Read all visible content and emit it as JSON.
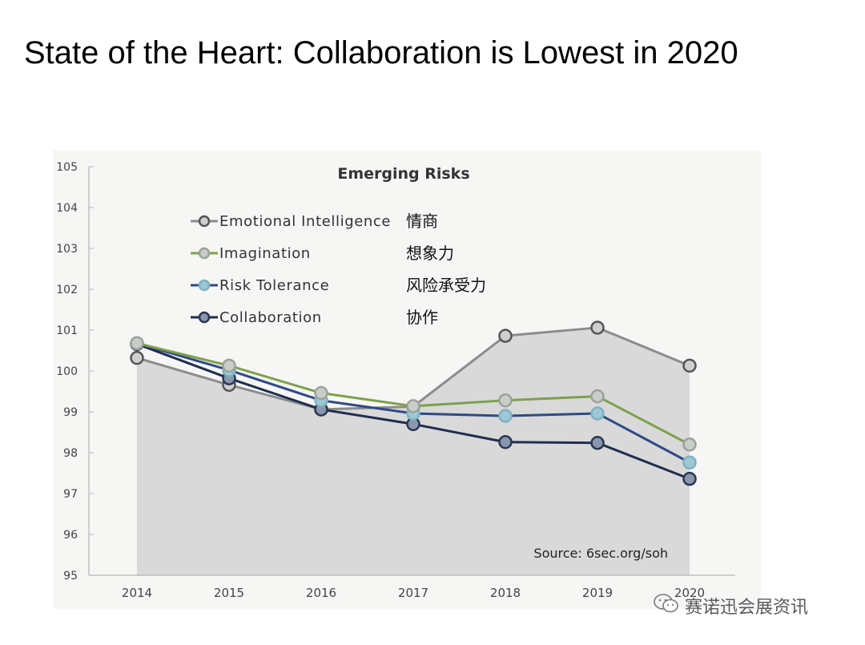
{
  "slide": {
    "title": "State of the Heart: Collaboration is Lowest in 2020"
  },
  "watermark": {
    "text": "赛诺迅会展资讯",
    "icon": "wechat-icon"
  },
  "colors": {
    "area": "#d9d9d9",
    "axis": "#b5b5b5",
    "text": "#333333"
  },
  "chart_data": {
    "type": "line",
    "title": "Emerging Risks",
    "source": "Source: 6sec.org/soh",
    "xlabel": "",
    "ylabel": "",
    "categories": [
      "2014",
      "2015",
      "2016",
      "2017",
      "2018",
      "2019",
      "2020"
    ],
    "ylim": [
      95,
      105
    ],
    "yticks": [
      "95",
      "96",
      "97",
      "98",
      "99",
      "100",
      "101",
      "102",
      "103",
      "104",
      "105"
    ],
    "grid": false,
    "legend_position": "top-left",
    "area_fill_series": "Emotional Intelligence",
    "series": [
      {
        "name": "Emotional Intelligence",
        "label_cn": "情商",
        "color": "#8c8c8c",
        "marker_fill": "#cfcfcf",
        "marker_stroke": "#555555",
        "values": [
          100.32,
          99.66,
          99.06,
          99.13,
          100.86,
          101.06,
          100.13
        ]
      },
      {
        "name": "Imagination",
        "label_cn": "想象力",
        "color": "#7ea04d",
        "marker_fill": "#c9ccc9",
        "marker_stroke": "#9aa39a",
        "values": [
          100.68,
          100.13,
          99.46,
          99.14,
          99.28,
          99.38,
          98.2
        ]
      },
      {
        "name": "Risk Tolerance",
        "label_cn": "风险承受力",
        "color": "#2e4a86",
        "marker_fill": "#9cc8d6",
        "marker_stroke": "#7fb1c2",
        "values": [
          100.68,
          100.02,
          99.28,
          98.96,
          98.9,
          98.96,
          97.76
        ]
      },
      {
        "name": "Collaboration",
        "label_cn": "协作",
        "color": "#1f2d4f",
        "marker_fill": "#8a96ab",
        "marker_stroke": "#2a3654",
        "values": [
          100.66,
          99.82,
          99.06,
          98.7,
          98.26,
          98.24,
          97.36
        ]
      }
    ]
  }
}
